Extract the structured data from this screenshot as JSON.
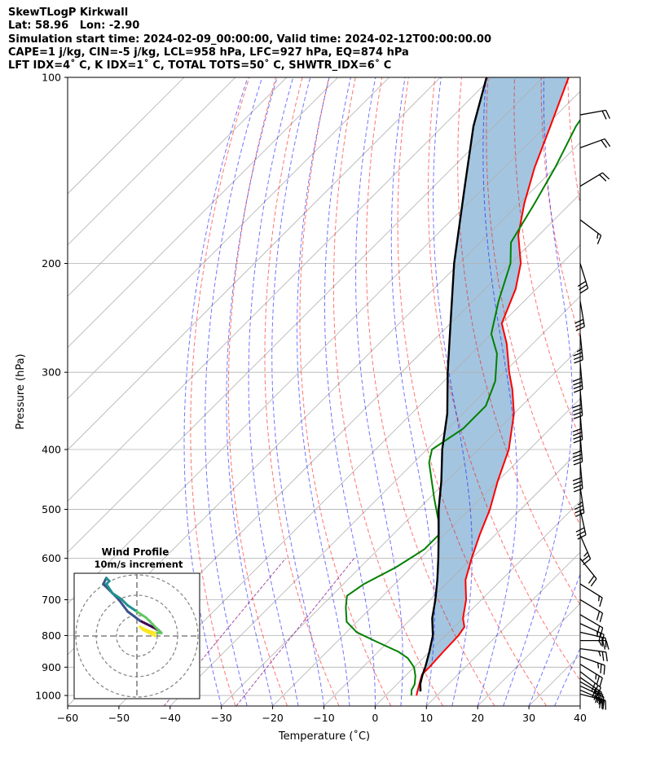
{
  "header": {
    "lines": [
      "SkewTLogP Kirkwall",
      "Lat: 58.96   Lon: -2.90",
      "Simulation start time: 2024-02-09_00:00:00, Valid time: 2024-02-12T00:00:00.00",
      "CAPE=1 j/kg, CIN=-5 j/kg, LCL=958 hPa, LFC=927 hPa, EQ=874 hPa",
      "LFT IDX=4˚ C, K IDX=1˚ C, TOTAL TOTS=50˚ C, SHWTR_IDX=6˚ C"
    ]
  },
  "chart_data": {
    "type": "skew-t log-p",
    "xlabel": "Temperature (˚C)",
    "ylabel": "Pressure (hPa)",
    "xlim": [
      -60,
      40
    ],
    "ylim": [
      1040,
      100
    ],
    "x_ticks": [
      "−60",
      "−50",
      "−40",
      "−30",
      "−20",
      "−10",
      "0",
      "10",
      "20",
      "30",
      "40"
    ],
    "x_tick_values": [
      -60,
      -50,
      -40,
      -30,
      -20,
      -10,
      0,
      10,
      20,
      30,
      40
    ],
    "y_ticks": [
      100,
      200,
      300,
      400,
      500,
      600,
      700,
      800,
      900,
      1000
    ],
    "grid": true,
    "log_pressure_axis": true,
    "temperature_profile": {
      "color": "#ff0000",
      "points": [
        [
          1000,
          6
        ],
        [
          975,
          5
        ],
        [
          950,
          4
        ],
        [
          925,
          3
        ],
        [
          900,
          3
        ],
        [
          850,
          2.7
        ],
        [
          800,
          2.5
        ],
        [
          775,
          2
        ],
        [
          750,
          0
        ],
        [
          700,
          -3
        ],
        [
          650,
          -7
        ],
        [
          600,
          -10
        ],
        [
          550,
          -13
        ],
        [
          500,
          -16
        ],
        [
          450,
          -20
        ],
        [
          400,
          -24
        ],
        [
          350,
          -30
        ],
        [
          320,
          -35
        ],
        [
          300,
          -39
        ],
        [
          270,
          -45
        ],
        [
          250,
          -50
        ],
        [
          220,
          -54
        ],
        [
          200,
          -58
        ],
        [
          180,
          -64
        ],
        [
          160,
          -69
        ],
        [
          140,
          -74
        ],
        [
          120,
          -79
        ],
        [
          100,
          -85
        ]
      ]
    },
    "dewpoint_profile": {
      "color": "#008000",
      "points": [
        [
          1000,
          5
        ],
        [
          980,
          4
        ],
        [
          960,
          3.5
        ],
        [
          930,
          2
        ],
        [
          900,
          0
        ],
        [
          870,
          -3
        ],
        [
          850,
          -6
        ],
        [
          820,
          -12
        ],
        [
          790,
          -18
        ],
        [
          760,
          -22
        ],
        [
          720,
          -25
        ],
        [
          690,
          -27
        ],
        [
          660,
          -26
        ],
        [
          620,
          -23
        ],
        [
          580,
          -21
        ],
        [
          550,
          -21
        ],
        [
          520,
          -24
        ],
        [
          480,
          -29
        ],
        [
          420,
          -37
        ],
        [
          400,
          -39
        ],
        [
          370,
          -37
        ],
        [
          340,
          -37
        ],
        [
          310,
          -40
        ],
        [
          280,
          -45
        ],
        [
          260,
          -50
        ],
        [
          230,
          -55
        ],
        [
          200,
          -60
        ],
        [
          185,
          -64
        ],
        [
          160,
          -67
        ],
        [
          140,
          -70
        ],
        [
          120,
          -74
        ],
        [
          100,
          -77
        ]
      ]
    },
    "parcel_profile": {
      "color": "#000000",
      "points": [
        [
          985,
          6
        ],
        [
          958,
          4.5
        ],
        [
          927,
          3.2
        ],
        [
          900,
          2.2
        ],
        [
          850,
          0
        ],
        [
          800,
          -2.5
        ],
        [
          750,
          -6
        ],
        [
          700,
          -9
        ],
        [
          650,
          -12.5
        ],
        [
          600,
          -16.5
        ],
        [
          550,
          -21
        ],
        [
          500,
          -26
        ],
        [
          450,
          -31
        ],
        [
          400,
          -37
        ],
        [
          350,
          -43
        ],
        [
          300,
          -51
        ],
        [
          250,
          -60
        ],
        [
          200,
          -71
        ],
        [
          150,
          -84
        ],
        [
          120,
          -94
        ],
        [
          100,
          -101
        ]
      ]
    },
    "cape_shading_color": "#a3c5e0",
    "dry_adiabat_color": "#ff0000",
    "moist_adiabat_color": "#0000ff",
    "mixing_ratio_color": "#800080",
    "wind_barbs": {
      "color": "#000000",
      "levels": [
        {
          "p": 995,
          "u": -12,
          "v": 3
        },
        {
          "p": 980,
          "u": -14,
          "v": 6
        },
        {
          "p": 965,
          "u": -15,
          "v": 7
        },
        {
          "p": 950,
          "u": -14,
          "v": 8
        },
        {
          "p": 935,
          "u": -13,
          "v": 9
        },
        {
          "p": 915,
          "u": -13,
          "v": 10
        },
        {
          "p": 890,
          "u": -13,
          "v": 8
        },
        {
          "p": 865,
          "u": -14,
          "v": 5
        },
        {
          "p": 840,
          "u": -15,
          "v": 2
        },
        {
          "p": 815,
          "u": -15,
          "v": 0
        },
        {
          "p": 790,
          "u": -13,
          "v": 3
        },
        {
          "p": 765,
          "u": -13,
          "v": 6
        },
        {
          "p": 740,
          "u": -12,
          "v": 7
        },
        {
          "p": 700,
          "u": -10,
          "v": 6
        },
        {
          "p": 660,
          "u": -8,
          "v": 5
        },
        {
          "p": 600,
          "u": -8,
          "v": 10
        },
        {
          "p": 550,
          "u": -6,
          "v": 14
        },
        {
          "p": 500,
          "u": -4,
          "v": 18
        },
        {
          "p": 460,
          "u": -3,
          "v": 20
        },
        {
          "p": 420,
          "u": -2,
          "v": 22
        },
        {
          "p": 380,
          "u": -2,
          "v": 24
        },
        {
          "p": 350,
          "u": -2,
          "v": 24
        },
        {
          "p": 320,
          "u": -2,
          "v": 24
        },
        {
          "p": 290,
          "u": -2,
          "v": 22
        },
        {
          "p": 260,
          "u": -2,
          "v": 20
        },
        {
          "p": 230,
          "u": -3,
          "v": 18
        },
        {
          "p": 200,
          "u": -5,
          "v": 16
        },
        {
          "p": 170,
          "u": -8,
          "v": 6
        },
        {
          "p": 150,
          "u": -10,
          "v": -6
        },
        {
          "p": 130,
          "u": -11,
          "v": -4
        },
        {
          "p": 115,
          "u": -11,
          "v": -2
        }
      ]
    },
    "hodograph": {
      "title": "Wind Profile",
      "subtitle": "10m/s increment",
      "rings_ms": [
        10,
        20,
        30
      ],
      "ring_color": "#808080",
      "path_colors": [
        "#440154",
        "#3b528b",
        "#21918c",
        "#5ec962",
        "#fde725"
      ],
      "points": [
        [
          5,
          3
        ],
        [
          7,
          2
        ],
        [
          8,
          1
        ],
        [
          7,
          2
        ],
        [
          5,
          3
        ],
        [
          3,
          4
        ],
        [
          1,
          5
        ],
        [
          -3,
          8
        ],
        [
          -6,
          12
        ],
        [
          -9,
          15
        ],
        [
          -11,
          17
        ],
        [
          -10,
          19
        ],
        [
          -9,
          18
        ],
        [
          -10,
          17
        ],
        [
          -8,
          14
        ],
        [
          -5,
          12
        ],
        [
          -3,
          10
        ],
        [
          0,
          8
        ],
        [
          3,
          6
        ],
        [
          5,
          4
        ],
        [
          7,
          2
        ],
        [
          8,
          1
        ],
        [
          6,
          1
        ],
        [
          3,
          2
        ],
        [
          1,
          3
        ],
        [
          2,
          2
        ],
        [
          4,
          1
        ],
        [
          6,
          0
        ]
      ]
    }
  }
}
